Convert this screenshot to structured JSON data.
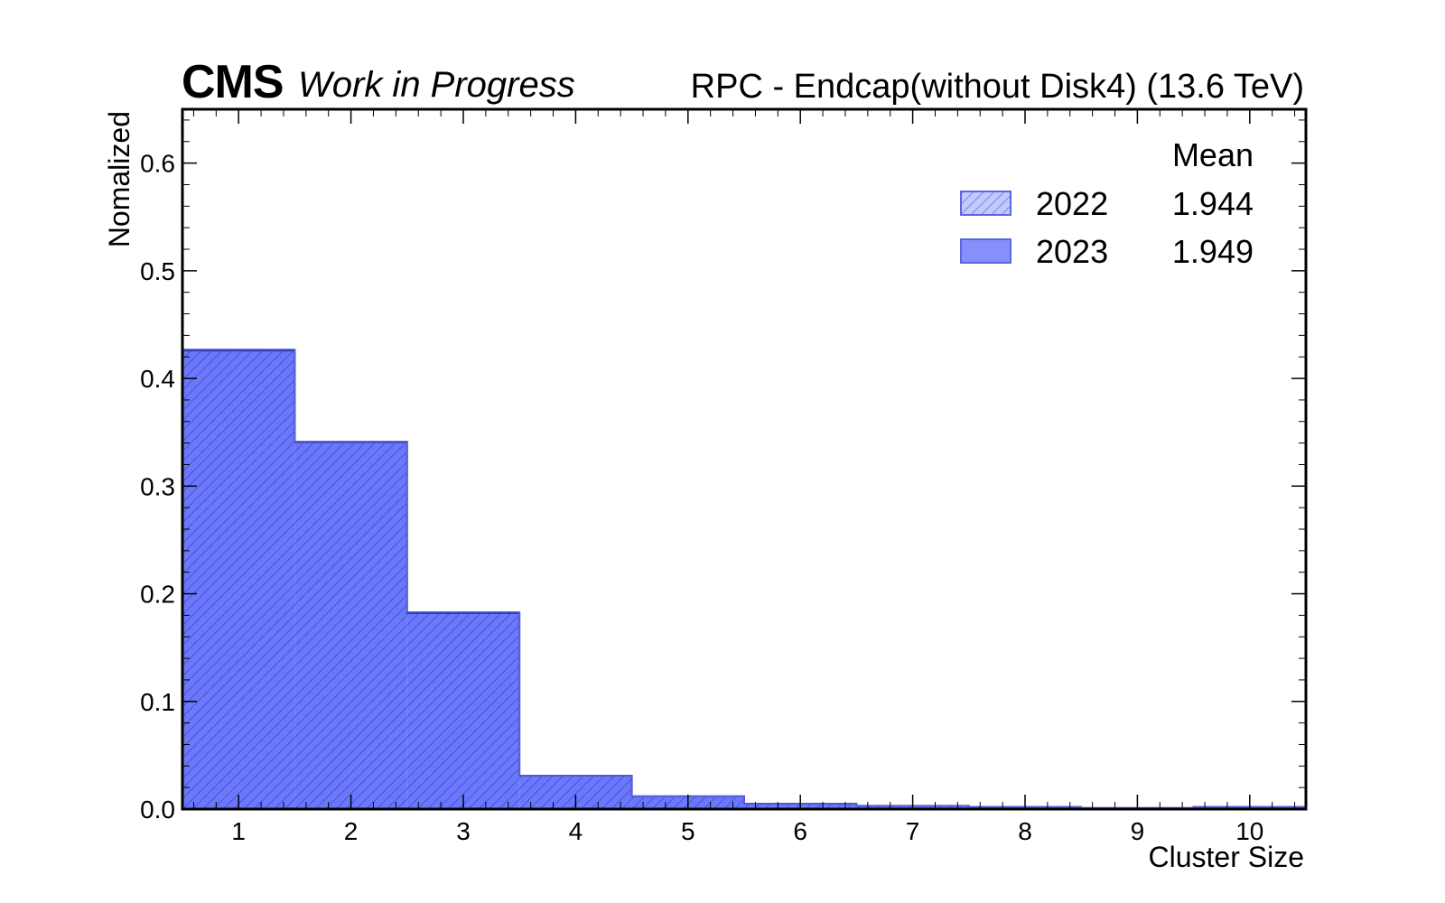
{
  "header": {
    "cms_label": "CMS",
    "status_label": "Work in Progress",
    "right_label": "RPC - Endcap(without Disk4) (13.6 TeV)"
  },
  "chart_data": {
    "type": "bar",
    "histogram": true,
    "xlabel": "Cluster Size",
    "ylabel": "Nomalized",
    "xlim": [
      0.5,
      10.5
    ],
    "ylim": [
      0,
      0.65
    ],
    "x_ticks": [
      1,
      2,
      3,
      4,
      5,
      6,
      7,
      8,
      9,
      10
    ],
    "y_ticks": [
      0.0,
      0.1,
      0.2,
      0.3,
      0.4,
      0.5,
      0.6
    ],
    "y_tick_labels": [
      "0.0",
      "0.1",
      "0.2",
      "0.3",
      "0.4",
      "0.5",
      "0.6"
    ],
    "categories": [
      1,
      2,
      3,
      4,
      5,
      6,
      7,
      8,
      9,
      10
    ],
    "series": [
      {
        "name": "2022",
        "style": "hatched",
        "mean": "1.944",
        "values": [
          0.427,
          0.34,
          0.183,
          0.031,
          0.012,
          0.005,
          0.003,
          0.002,
          0.001,
          0.002
        ]
      },
      {
        "name": "2023",
        "style": "filled",
        "mean": "1.949",
        "values": [
          0.426,
          0.341,
          0.182,
          0.031,
          0.012,
          0.005,
          0.003,
          0.002,
          0.001,
          0.002
        ]
      }
    ],
    "legend": {
      "header": "Mean",
      "placement": "top-right"
    },
    "colors": {
      "fill_2023": "#6b78fb",
      "hatch_2022": "#3a46c8",
      "edge": "#2b35a8",
      "legend_2022_fill": "#c3c9fc"
    }
  }
}
